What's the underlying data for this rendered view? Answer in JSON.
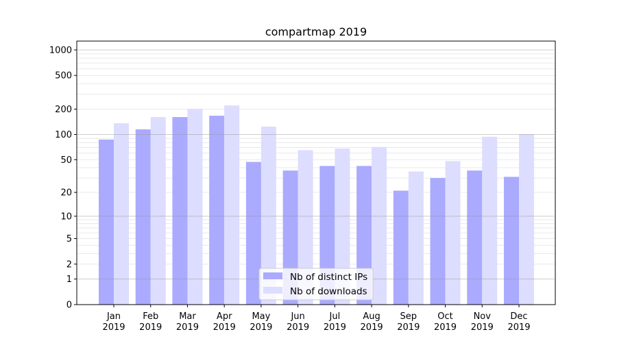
{
  "chart_data": {
    "type": "bar",
    "title": "compartmap 2019",
    "xlabel": "",
    "ylabel": "",
    "yscale": "log(1+x)",
    "ylim": [
      0,
      1200
    ],
    "yticks": [
      0,
      1,
      2,
      5,
      10,
      20,
      50,
      100,
      200,
      500,
      1000
    ],
    "ytick_labels": [
      "0",
      "1",
      "2",
      "5",
      "10",
      "20",
      "50",
      "100",
      "200",
      "500",
      "1000"
    ],
    "grid": true,
    "legend_position": "bottom-center",
    "categories": [
      "Jan\n2019",
      "Feb\n2019",
      "Mar\n2019",
      "Apr\n2019",
      "May\n2019",
      "Jun\n2019",
      "Jul\n2019",
      "Aug\n2019",
      "Sep\n2019",
      "Oct\n2019",
      "Nov\n2019",
      "Dec\n2019"
    ],
    "series": [
      {
        "name": "Nb of distinct IPs",
        "color": "#aaaaff",
        "values": [
          87,
          115,
          161,
          167,
          47,
          37,
          42,
          42,
          21,
          30,
          37,
          31
        ]
      },
      {
        "name": "Nb of downloads",
        "color": "#ddddff",
        "values": [
          136,
          161,
          201,
          221,
          124,
          65,
          68,
          71,
          36,
          48,
          94,
          101
        ]
      }
    ]
  }
}
